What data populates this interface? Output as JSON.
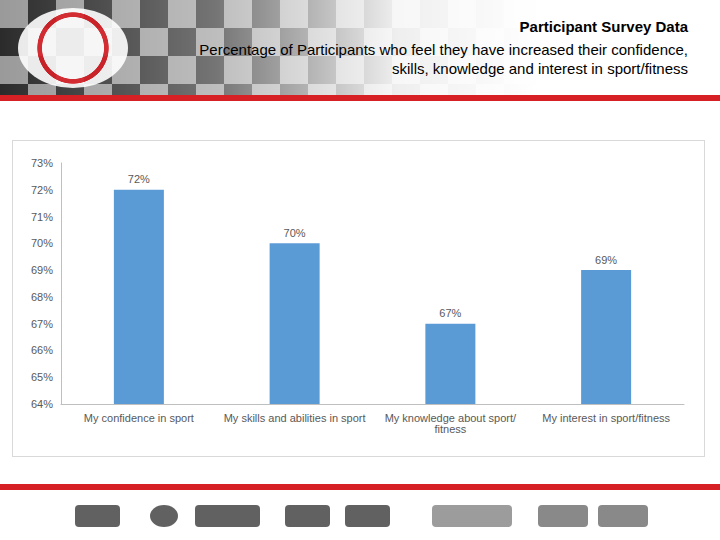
{
  "chart_data": {
    "type": "bar",
    "title": "Participant Survey Data",
    "subtitle": "Percentage of Participants who feel they have increased their confidence, skills, knowledge and interest in sport/fitness",
    "categories": [
      "My confidence in sport",
      "My skills and abilities in sport",
      "My knowledge about sport/fitness",
      "My interest in sport/fitness"
    ],
    "values": [
      72,
      70,
      67,
      69
    ],
    "value_labels": [
      "72%",
      "70%",
      "67%",
      "69%"
    ],
    "color": "#5b9bd5",
    "ylim": [
      64,
      73
    ],
    "yticks": [
      {
        "value": 64,
        "label": "64%"
      },
      {
        "value": 65,
        "label": "65%"
      },
      {
        "value": 66,
        "label": "66%"
      },
      {
        "value": 67,
        "label": "67%"
      },
      {
        "value": 68,
        "label": "68%"
      },
      {
        "value": 69,
        "label": "69%"
      },
      {
        "value": 70,
        "label": "70%"
      },
      {
        "value": 71,
        "label": "71%"
      },
      {
        "value": 72,
        "label": "72%"
      },
      {
        "value": 73,
        "label": "73%"
      }
    ],
    "grid": false,
    "data_labels": true
  }
}
